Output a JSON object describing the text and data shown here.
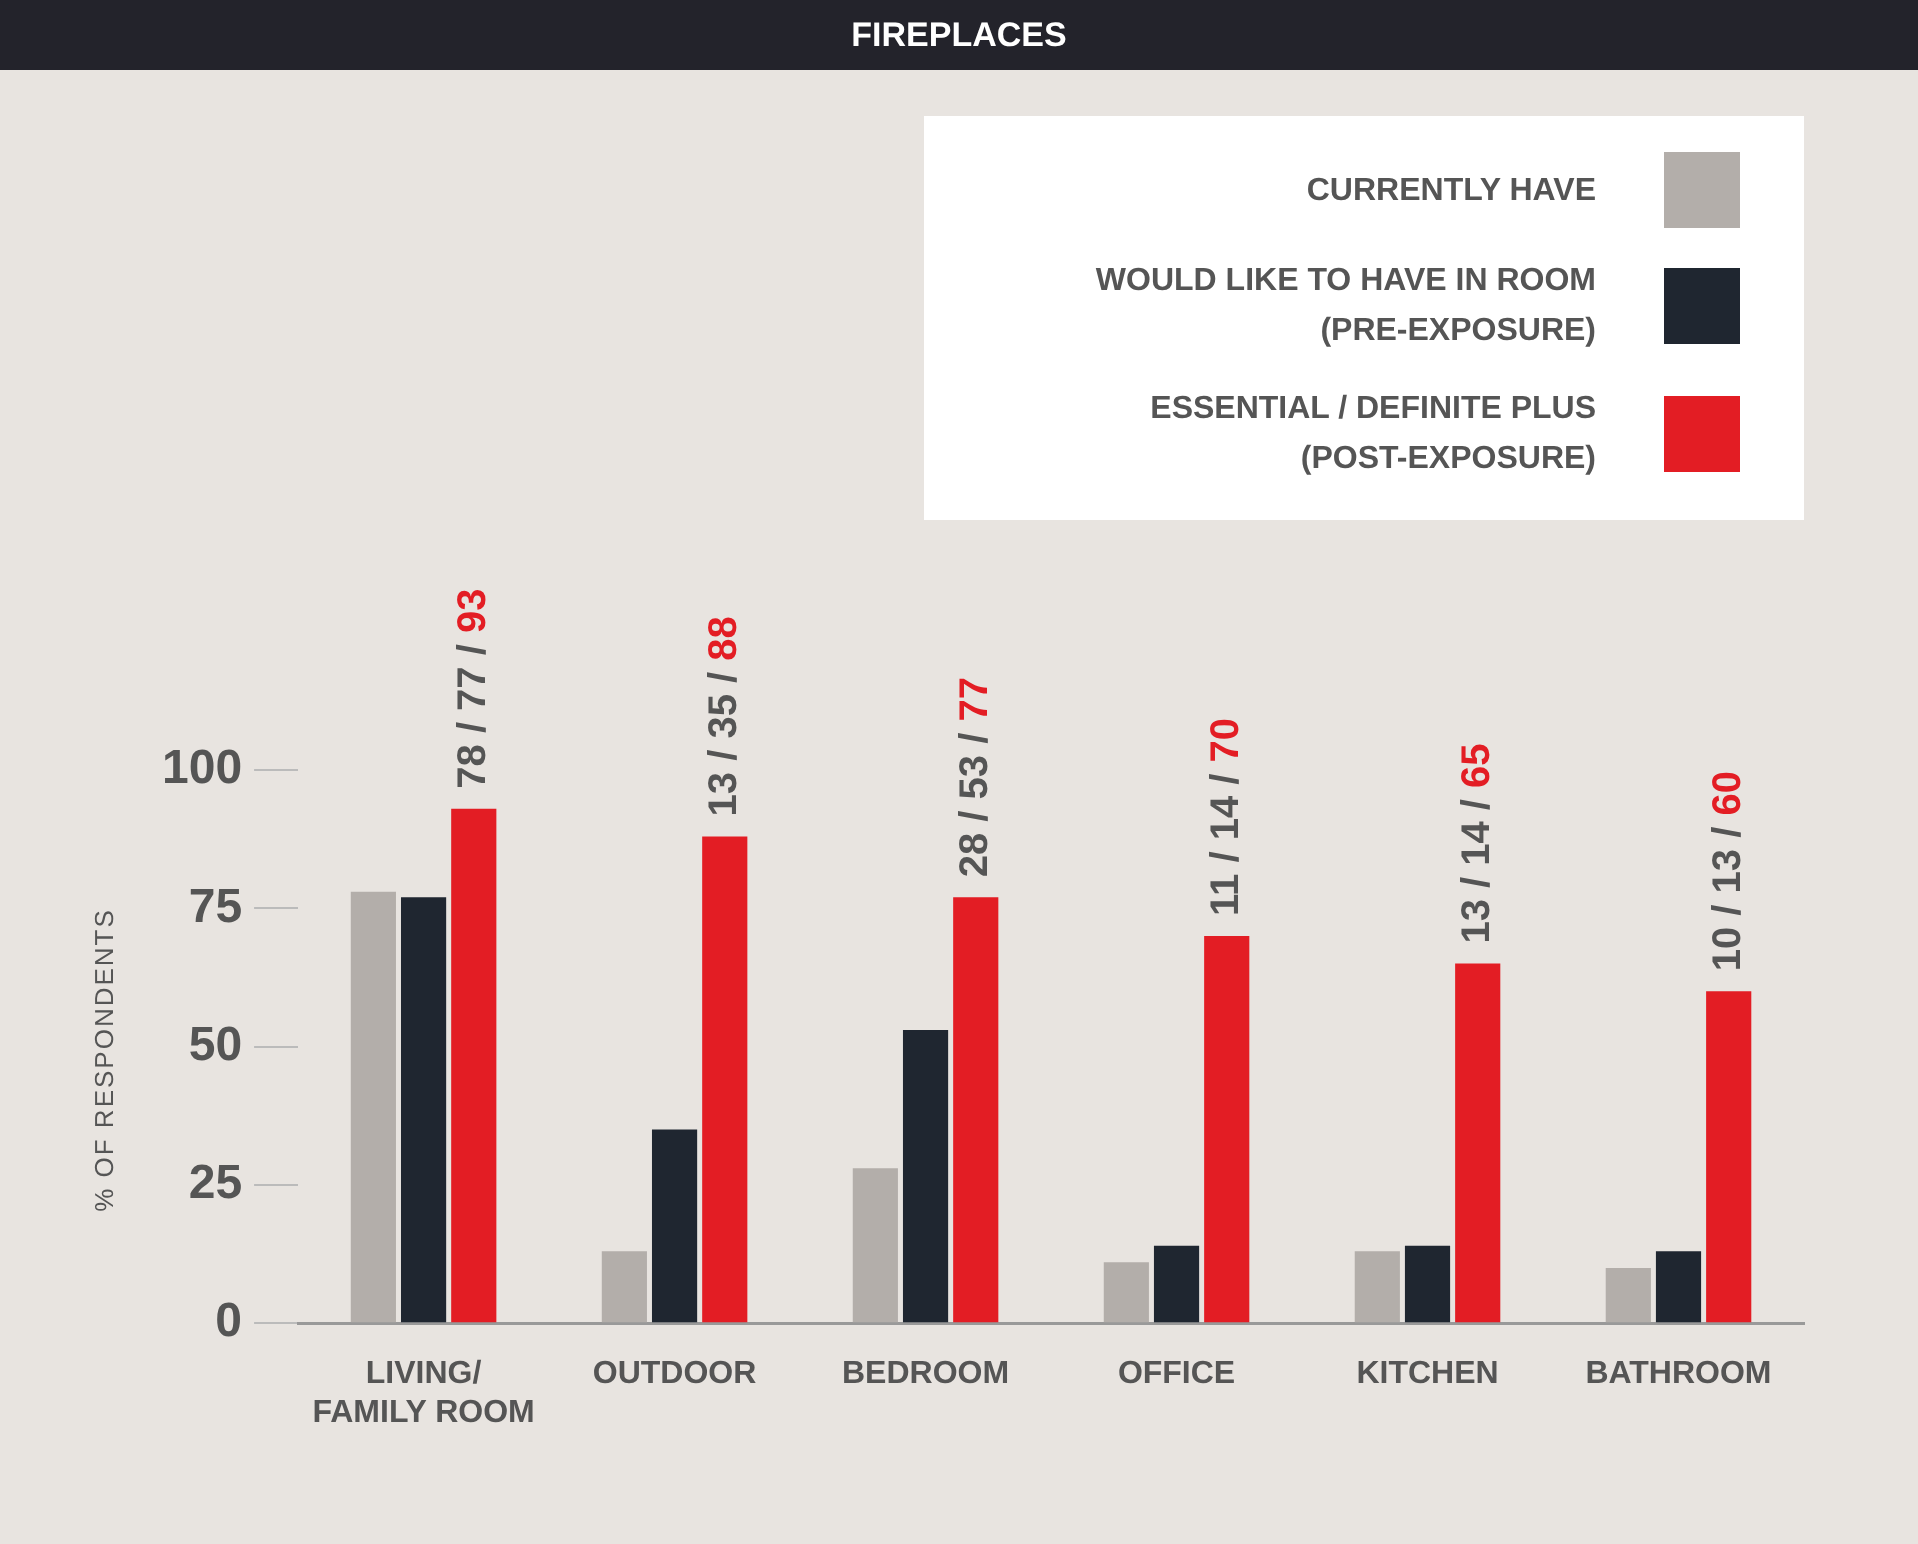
{
  "chart_data": {
    "type": "bar",
    "title": "FIREPLACES",
    "ylabel": "% OF RESPONDENTS",
    "categories": [
      "LIVING/\nFAMILY ROOM",
      "OUTDOOR",
      "BEDROOM",
      "OFFICE",
      "KITCHEN",
      "BATHROOM"
    ],
    "series": [
      {
        "name": "CURRENTLY HAVE",
        "color": "#b3aeaa",
        "values": [
          78,
          13,
          28,
          11,
          13,
          10
        ]
      },
      {
        "name": "WOULD LIKE TO HAVE IN ROOM\n(PRE-EXPOSURE)",
        "color": "#1f2630",
        "values": [
          77,
          35,
          53,
          14,
          14,
          13
        ]
      },
      {
        "name": "ESSENTIAL / DEFINITE PLUS\n(POST-EXPOSURE)",
        "color": "#e31d24",
        "values": [
          93,
          88,
          77,
          70,
          65,
          60
        ]
      }
    ],
    "ylim": [
      0,
      100
    ],
    "yticks": [
      0,
      25,
      50,
      75,
      100
    ],
    "grid": false,
    "legend": "top right",
    "annotations": [
      "78 / 77 / 93",
      "13 / 35 / 88",
      "28 / 53 / 77",
      "11 / 14 / 70",
      "13 / 14 / 65",
      "10 / 13 / 60"
    ]
  }
}
